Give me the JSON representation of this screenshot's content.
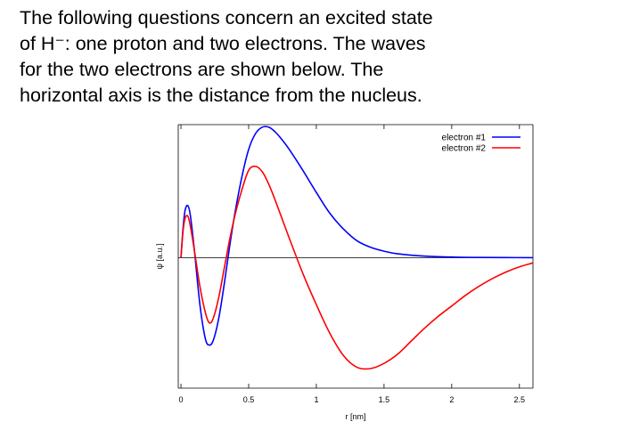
{
  "question": {
    "lines": [
      "The following questions concern an excited state",
      "of H⁻: one proton and two electrons. The waves",
      "for the two electrons are shown below. The",
      "horizontal axis is the distance from the nucleus."
    ]
  },
  "chart_data": {
    "type": "line",
    "title": "",
    "xlabel": "r [nm]",
    "ylabel": "ψ [a.u.]",
    "xlim": [
      -0.02,
      2.6
    ],
    "ylim": [
      -1.0,
      1.02
    ],
    "xticks": [
      0,
      0.5,
      1,
      1.5,
      2,
      2.5
    ],
    "xtick_labels": [
      "0",
      "0.5",
      "1",
      "1.5",
      "2",
      "2.5"
    ],
    "grid": false,
    "legend_position": "top-right",
    "series": [
      {
        "name": "electron #1",
        "color": "#0000ff",
        "x": [
          0,
          0.015,
          0.03,
          0.05,
          0.07,
          0.1,
          0.14,
          0.18,
          0.21,
          0.24,
          0.28,
          0.32,
          0.36,
          0.4,
          0.45,
          0.5,
          0.55,
          0.6,
          0.65,
          0.7,
          0.75,
          0.8,
          0.9,
          1.0,
          1.1,
          1.2,
          1.3,
          1.4,
          1.5,
          1.6,
          1.8,
          2.0,
          2.2,
          2.4,
          2.6
        ],
        "y": [
          0.0,
          0.22,
          0.36,
          0.4,
          0.32,
          0.05,
          -0.36,
          -0.62,
          -0.67,
          -0.63,
          -0.46,
          -0.2,
          0.09,
          0.35,
          0.62,
          0.83,
          0.95,
          1.0,
          1.0,
          0.96,
          0.9,
          0.83,
          0.67,
          0.5,
          0.34,
          0.22,
          0.13,
          0.08,
          0.05,
          0.03,
          0.012,
          0.005,
          0.002,
          0.001,
          0.0
        ]
      },
      {
        "name": "electron #2",
        "color": "#ff0000",
        "x": [
          0,
          0.015,
          0.03,
          0.05,
          0.07,
          0.1,
          0.14,
          0.18,
          0.21,
          0.24,
          0.28,
          0.32,
          0.36,
          0.4,
          0.45,
          0.5,
          0.55,
          0.6,
          0.65,
          0.7,
          0.8,
          0.9,
          1.0,
          1.1,
          1.2,
          1.3,
          1.4,
          1.5,
          1.6,
          1.7,
          1.8,
          1.9,
          2.0,
          2.1,
          2.2,
          2.3,
          2.4,
          2.5,
          2.6
        ],
        "y": [
          0.0,
          0.2,
          0.3,
          0.32,
          0.24,
          0.05,
          -0.22,
          -0.42,
          -0.5,
          -0.46,
          -0.3,
          -0.08,
          0.14,
          0.33,
          0.52,
          0.67,
          0.7,
          0.66,
          0.56,
          0.43,
          0.15,
          -0.12,
          -0.36,
          -0.58,
          -0.75,
          -0.84,
          -0.85,
          -0.81,
          -0.74,
          -0.64,
          -0.54,
          -0.45,
          -0.37,
          -0.29,
          -0.22,
          -0.16,
          -0.11,
          -0.07,
          -0.04
        ]
      }
    ]
  }
}
